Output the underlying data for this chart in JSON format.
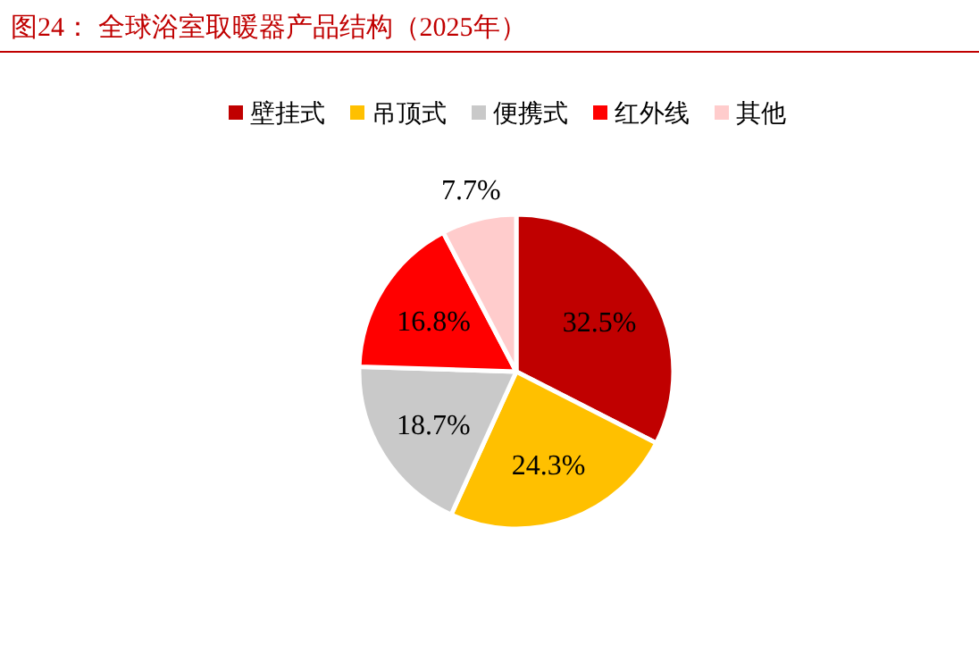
{
  "chart_data": {
    "type": "pie",
    "title": "图24：  全球浴室取暖器产品结构（2025年）",
    "categories": [
      "壁挂式",
      "吊顶式",
      "便携式",
      "红外线",
      "其他"
    ],
    "values": [
      32.5,
      24.3,
      18.7,
      16.8,
      7.7
    ],
    "colors": [
      "#c00000",
      "#ffc000",
      "#c9c9c9",
      "#ff0000",
      "#ffcccc"
    ],
    "value_labels": [
      "32.5%",
      "24.3%",
      "18.7%",
      "16.8%",
      "7.7%"
    ],
    "legend": "top"
  }
}
